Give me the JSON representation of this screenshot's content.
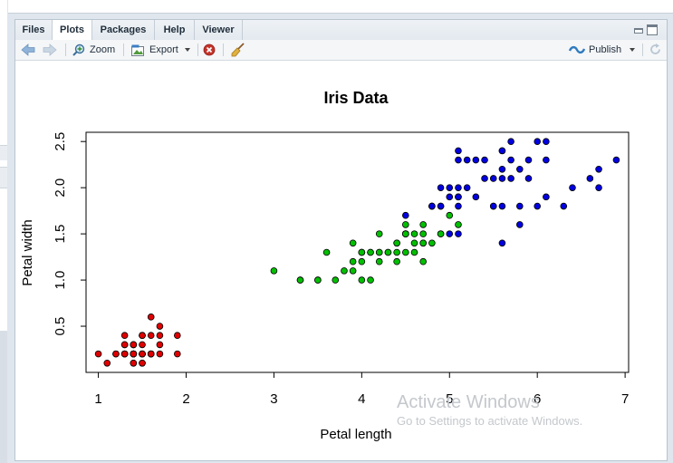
{
  "tabs": [
    {
      "label": "Files",
      "active": false
    },
    {
      "label": "Plots",
      "active": true
    },
    {
      "label": "Packages",
      "active": false
    },
    {
      "label": "Help",
      "active": false
    },
    {
      "label": "Viewer",
      "active": false
    }
  ],
  "toolbar": {
    "zoom_label": "Zoom",
    "export_label": "Export",
    "publish_label": "Publish"
  },
  "watermark": {
    "title": "Activate Windows",
    "subtitle": "Go to Settings to activate Windows."
  },
  "colors": {
    "setosa": "#e00000",
    "versicolor": "#00c000",
    "virginica": "#0000e0"
  },
  "chart_data": {
    "type": "scatter",
    "title": "Iris Data",
    "xlabel": "Petal length",
    "ylabel": "Petal width",
    "xlim": [
      0.86,
      7.04
    ],
    "ylim": [
      0.0,
      2.6
    ],
    "xticks": [
      1,
      2,
      3,
      4,
      5,
      6,
      7
    ],
    "yticks": [
      0.5,
      1.0,
      1.5,
      2.0,
      2.5
    ],
    "yticklabels": [
      "0.5",
      "1.0",
      "1.5",
      "2.0",
      "2.5"
    ],
    "grid": false,
    "series": [
      {
        "color": "#e00000",
        "points": [
          [
            1.4,
            0.2
          ],
          [
            1.4,
            0.2
          ],
          [
            1.3,
            0.2
          ],
          [
            1.5,
            0.2
          ],
          [
            1.4,
            0.2
          ],
          [
            1.7,
            0.4
          ],
          [
            1.4,
            0.3
          ],
          [
            1.5,
            0.2
          ],
          [
            1.4,
            0.2
          ],
          [
            1.5,
            0.1
          ],
          [
            1.5,
            0.2
          ],
          [
            1.6,
            0.2
          ],
          [
            1.4,
            0.1
          ],
          [
            1.1,
            0.1
          ],
          [
            1.2,
            0.2
          ],
          [
            1.5,
            0.4
          ],
          [
            1.3,
            0.4
          ],
          [
            1.4,
            0.3
          ],
          [
            1.7,
            0.3
          ],
          [
            1.5,
            0.3
          ],
          [
            1.7,
            0.2
          ],
          [
            1.5,
            0.4
          ],
          [
            1.0,
            0.2
          ],
          [
            1.7,
            0.5
          ],
          [
            1.9,
            0.2
          ],
          [
            1.6,
            0.2
          ],
          [
            1.6,
            0.4
          ],
          [
            1.5,
            0.2
          ],
          [
            1.4,
            0.2
          ],
          [
            1.6,
            0.2
          ],
          [
            1.6,
            0.2
          ],
          [
            1.5,
            0.4
          ],
          [
            1.5,
            0.1
          ],
          [
            1.4,
            0.2
          ],
          [
            1.5,
            0.2
          ],
          [
            1.2,
            0.2
          ],
          [
            1.3,
            0.2
          ],
          [
            1.4,
            0.1
          ],
          [
            1.3,
            0.2
          ],
          [
            1.5,
            0.2
          ],
          [
            1.3,
            0.3
          ],
          [
            1.3,
            0.3
          ],
          [
            1.3,
            0.2
          ],
          [
            1.6,
            0.6
          ],
          [
            1.9,
            0.4
          ],
          [
            1.4,
            0.3
          ],
          [
            1.6,
            0.2
          ],
          [
            1.4,
            0.2
          ],
          [
            1.5,
            0.2
          ],
          [
            1.4,
            0.2
          ]
        ]
      },
      {
        "color": "#00c000",
        "points": [
          [
            4.7,
            1.4
          ],
          [
            4.5,
            1.5
          ],
          [
            4.9,
            1.5
          ],
          [
            4.0,
            1.3
          ],
          [
            4.6,
            1.5
          ],
          [
            4.5,
            1.3
          ],
          [
            4.7,
            1.6
          ],
          [
            3.3,
            1.0
          ],
          [
            4.6,
            1.3
          ],
          [
            3.9,
            1.4
          ],
          [
            3.5,
            1.0
          ],
          [
            4.2,
            1.5
          ],
          [
            4.0,
            1.0
          ],
          [
            4.7,
            1.4
          ],
          [
            3.6,
            1.3
          ],
          [
            4.4,
            1.4
          ],
          [
            4.5,
            1.5
          ],
          [
            4.1,
            1.0
          ],
          [
            4.5,
            1.5
          ],
          [
            3.9,
            1.1
          ],
          [
            4.8,
            1.8
          ],
          [
            4.0,
            1.3
          ],
          [
            4.9,
            1.5
          ],
          [
            4.7,
            1.2
          ],
          [
            4.3,
            1.3
          ],
          [
            4.4,
            1.4
          ],
          [
            4.8,
            1.4
          ],
          [
            5.0,
            1.7
          ],
          [
            4.5,
            1.5
          ],
          [
            3.5,
            1.0
          ],
          [
            3.8,
            1.1
          ],
          [
            3.7,
            1.0
          ],
          [
            3.9,
            1.2
          ],
          [
            5.1,
            1.6
          ],
          [
            4.5,
            1.5
          ],
          [
            4.5,
            1.6
          ],
          [
            4.7,
            1.5
          ],
          [
            4.4,
            1.3
          ],
          [
            4.1,
            1.3
          ],
          [
            4.0,
            1.3
          ],
          [
            4.4,
            1.2
          ],
          [
            4.6,
            1.4
          ],
          [
            4.0,
            1.2
          ],
          [
            3.3,
            1.0
          ],
          [
            4.2,
            1.3
          ],
          [
            4.2,
            1.2
          ],
          [
            4.2,
            1.3
          ],
          [
            4.3,
            1.3
          ],
          [
            3.0,
            1.1
          ],
          [
            4.1,
            1.3
          ]
        ]
      },
      {
        "color": "#0000e0",
        "points": [
          [
            6.0,
            2.5
          ],
          [
            5.1,
            1.9
          ],
          [
            5.9,
            2.1
          ],
          [
            5.6,
            1.8
          ],
          [
            5.8,
            2.2
          ],
          [
            6.6,
            2.1
          ],
          [
            4.5,
            1.7
          ],
          [
            6.3,
            1.8
          ],
          [
            5.8,
            1.8
          ],
          [
            6.1,
            2.5
          ],
          [
            5.1,
            2.0
          ],
          [
            5.3,
            1.9
          ],
          [
            5.5,
            2.1
          ],
          [
            5.0,
            2.0
          ],
          [
            5.1,
            2.4
          ],
          [
            5.3,
            2.3
          ],
          [
            5.5,
            1.8
          ],
          [
            6.7,
            2.2
          ],
          [
            6.9,
            2.3
          ],
          [
            5.0,
            1.5
          ],
          [
            5.7,
            2.3
          ],
          [
            4.9,
            2.0
          ],
          [
            6.7,
            2.0
          ],
          [
            4.9,
            1.8
          ],
          [
            5.7,
            2.1
          ],
          [
            6.0,
            1.8
          ],
          [
            4.8,
            1.8
          ],
          [
            4.9,
            1.8
          ],
          [
            5.6,
            2.1
          ],
          [
            5.8,
            1.6
          ],
          [
            6.1,
            1.9
          ],
          [
            6.4,
            2.0
          ],
          [
            5.6,
            2.2
          ],
          [
            5.1,
            1.5
          ],
          [
            5.6,
            1.4
          ],
          [
            6.1,
            2.3
          ],
          [
            5.6,
            2.4
          ],
          [
            5.5,
            1.8
          ],
          [
            4.8,
            1.8
          ],
          [
            5.4,
            2.1
          ],
          [
            5.6,
            2.4
          ],
          [
            5.1,
            2.3
          ],
          [
            5.1,
            1.9
          ],
          [
            5.9,
            2.3
          ],
          [
            5.7,
            2.5
          ],
          [
            5.2,
            2.3
          ],
          [
            5.0,
            1.9
          ],
          [
            5.2,
            2.0
          ],
          [
            5.4,
            2.3
          ],
          [
            5.1,
            1.8
          ]
        ]
      }
    ]
  }
}
